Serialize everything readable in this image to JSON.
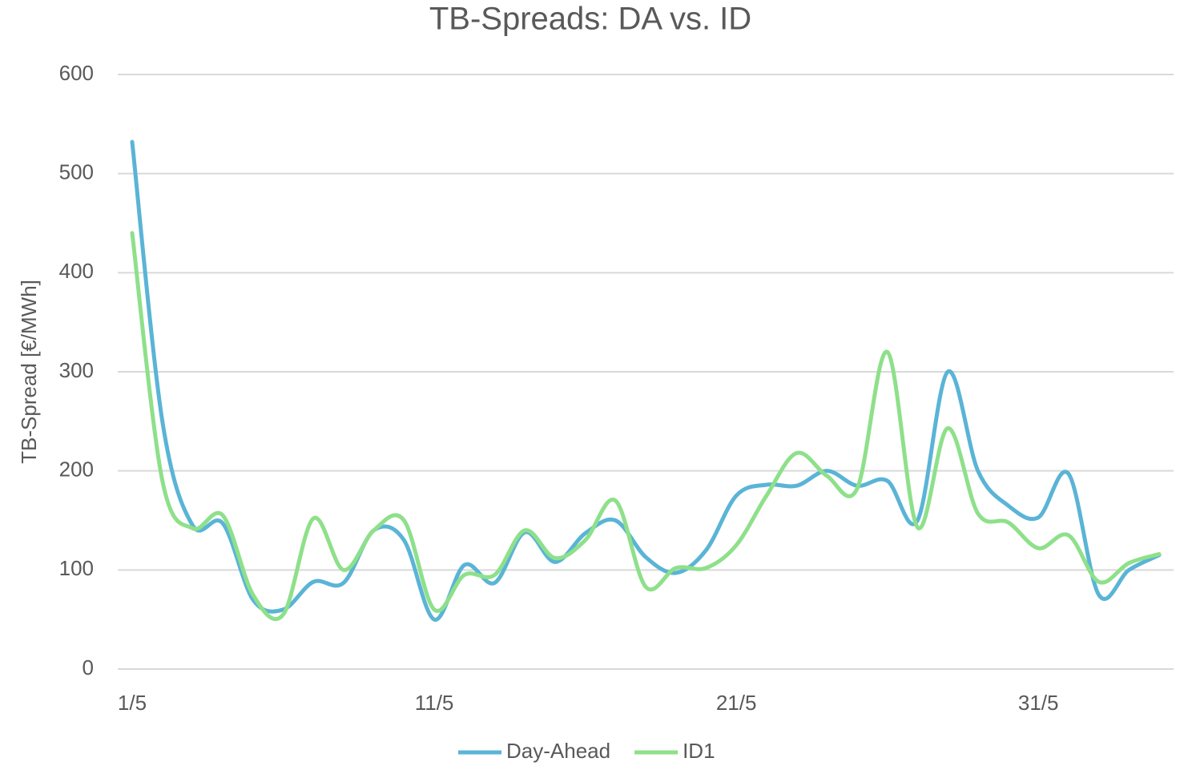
{
  "chart_data": {
    "type": "line",
    "title": "TB-Spreads: DA vs. ID",
    "y_label": "TB-Spread [€/MWh]",
    "categories": [
      "1/5",
      null,
      null,
      null,
      null,
      null,
      null,
      null,
      null,
      null,
      "11/5",
      null,
      null,
      null,
      null,
      null,
      null,
      null,
      null,
      null,
      "21/5",
      null,
      null,
      null,
      null,
      null,
      null,
      null,
      null,
      null,
      "31/5",
      null,
      null,
      null,
      null
    ],
    "series": [
      {
        "name": "Day-Ahead",
        "color": "#5ab4d6",
        "values": [
          532,
          250,
          145,
          147,
          70,
          60,
          88,
          87,
          140,
          130,
          50,
          105,
          87,
          138,
          108,
          137,
          150,
          113,
          97,
          120,
          175,
          186,
          185,
          200,
          185,
          190,
          150,
          300,
          200,
          165,
          153,
          197,
          75,
          100,
          115
        ]
      },
      {
        "name": "ID1",
        "color": "#8ee08a",
        "values": [
          440,
          190,
          142,
          155,
          75,
          55,
          152,
          100,
          140,
          150,
          60,
          95,
          95,
          140,
          112,
          130,
          170,
          83,
          102,
          102,
          125,
          175,
          218,
          195,
          182,
          320,
          143,
          243,
          157,
          148,
          122,
          135,
          88,
          107,
          116
        ]
      }
    ],
    "ylim": [
      0,
      600
    ],
    "yticks": [
      0,
      100,
      200,
      300,
      400,
      500,
      600
    ],
    "grid": true,
    "legend": "bottom"
  }
}
